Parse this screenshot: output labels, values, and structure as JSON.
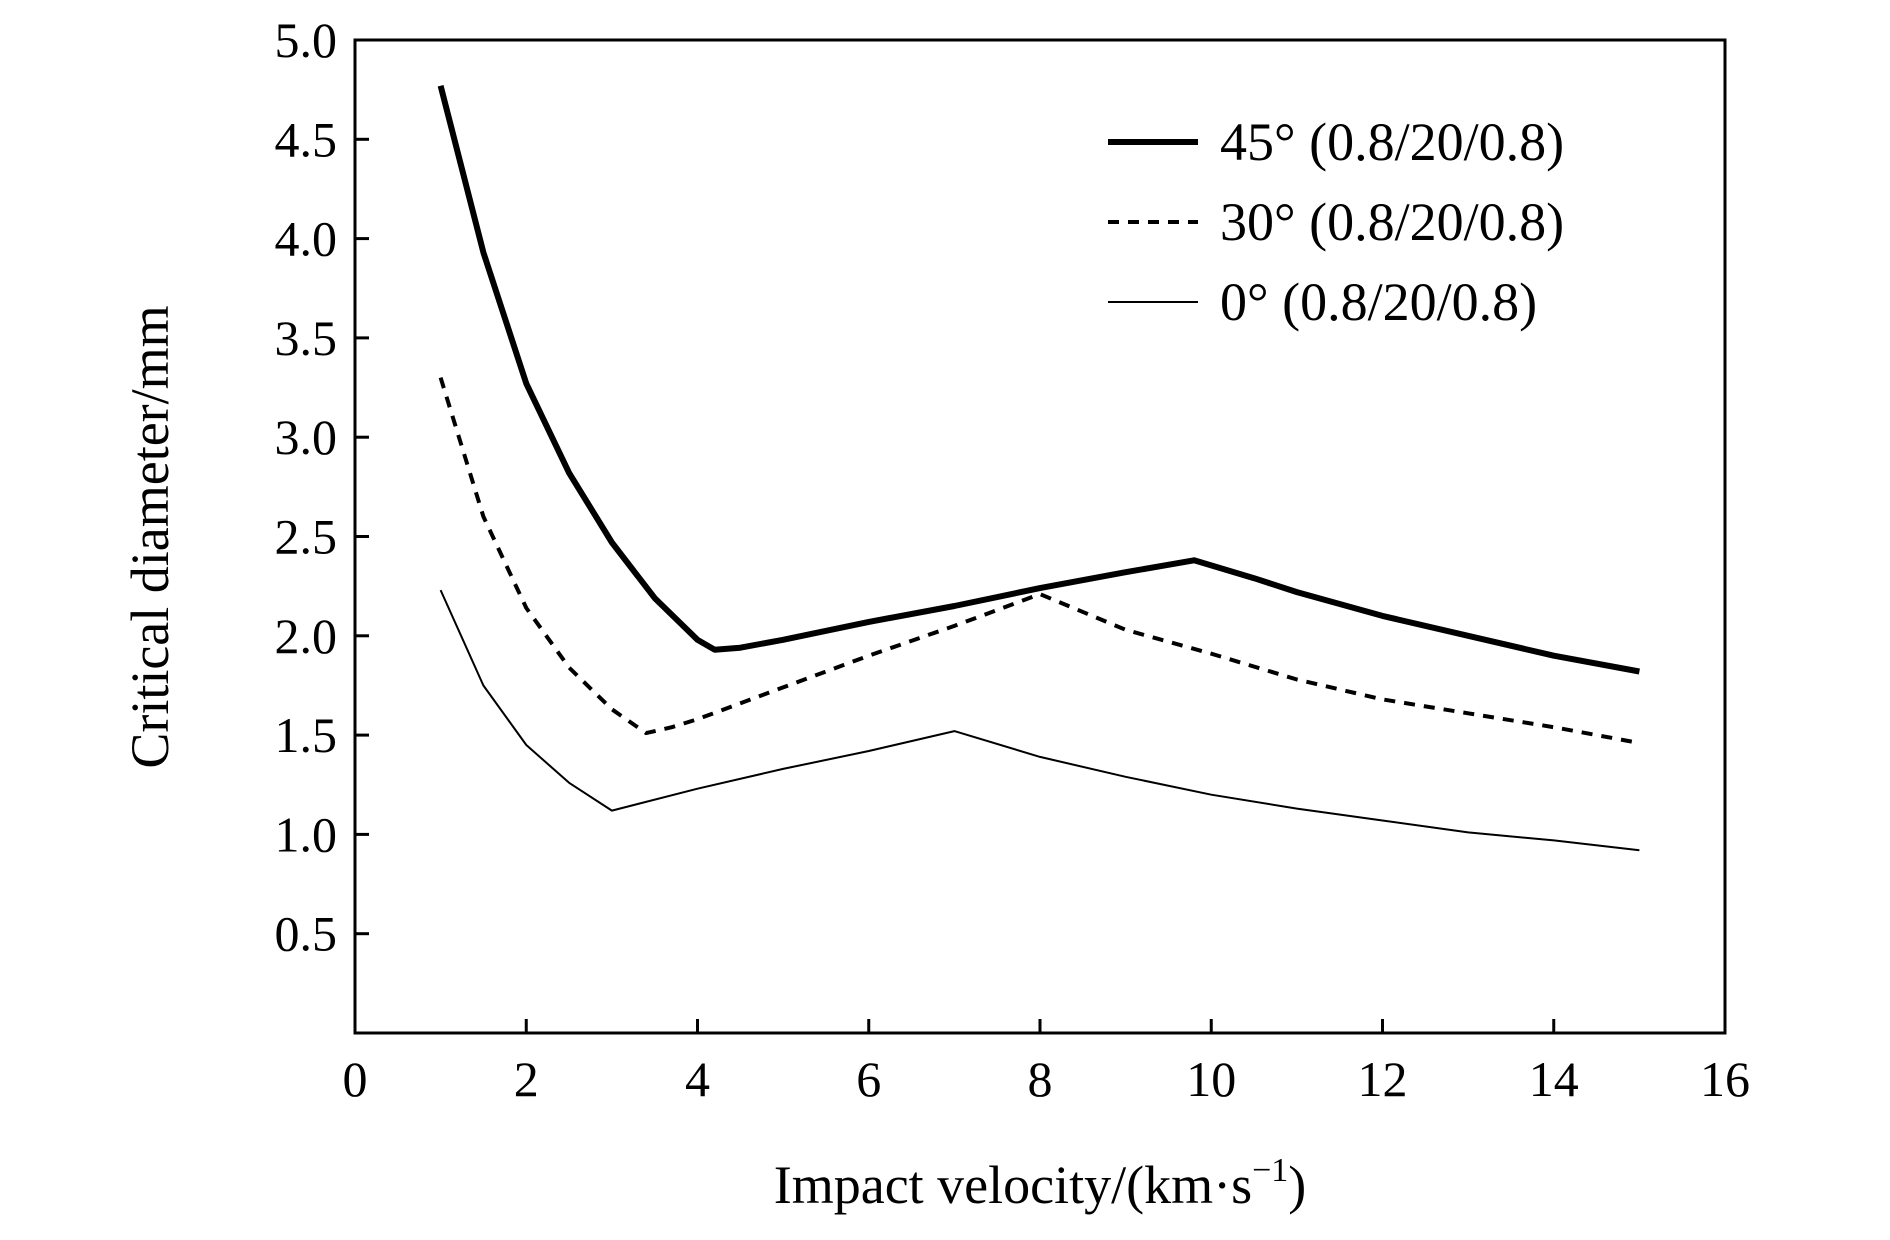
{
  "chart_data": {
    "type": "line",
    "title": "",
    "xlabel_main": "Impact velocity/(km·s",
    "xlabel_sup": "−1",
    "xlabel_close": ")",
    "ylabel": "Critical diameter/mm",
    "xlim": [
      0,
      16
    ],
    "ylim": [
      0,
      5.0
    ],
    "xticks": [
      "0",
      "2",
      "4",
      "6",
      "8",
      "10",
      "12",
      "14",
      "16"
    ],
    "yticks": [
      "0.5",
      "1.0",
      "1.5",
      "2.0",
      "2.5",
      "3.0",
      "3.5",
      "4.0",
      "4.5",
      "5.0"
    ],
    "grid": false,
    "legend_position": "top-right",
    "series": [
      {
        "name": "45° (0.8/20/0.8)",
        "style": "thick-solid",
        "x": [
          1.0,
          1.5,
          2.0,
          2.5,
          3.0,
          3.5,
          4.0,
          4.2,
          4.5,
          5.0,
          6.0,
          7.0,
          8.0,
          9.0,
          9.8,
          10.5,
          11.0,
          12.0,
          13.0,
          14.0,
          15.0
        ],
        "y": [
          4.77,
          3.93,
          3.27,
          2.82,
          2.47,
          2.19,
          1.98,
          1.93,
          1.94,
          1.98,
          2.07,
          2.15,
          2.24,
          2.32,
          2.38,
          2.29,
          2.22,
          2.1,
          2.0,
          1.9,
          1.82
        ]
      },
      {
        "name": "30° (0.8/20/0.8)",
        "style": "dashed",
        "x": [
          1.0,
          1.5,
          2.0,
          2.5,
          3.0,
          3.4,
          3.7,
          4.0,
          5.0,
          6.0,
          7.0,
          8.0,
          9.0,
          10.0,
          11.0,
          12.0,
          13.0,
          14.0,
          15.0
        ],
        "y": [
          3.3,
          2.6,
          2.14,
          1.84,
          1.63,
          1.51,
          1.54,
          1.58,
          1.74,
          1.9,
          2.05,
          2.21,
          2.03,
          1.91,
          1.78,
          1.68,
          1.61,
          1.54,
          1.46
        ]
      },
      {
        "name": "0° (0.8/20/0.8)",
        "style": "thin-solid",
        "x": [
          1.0,
          1.5,
          2.0,
          2.5,
          3.0,
          4.0,
          5.0,
          6.0,
          7.0,
          8.0,
          9.0,
          10.0,
          11.0,
          12.0,
          13.0,
          14.0,
          15.0
        ],
        "y": [
          2.23,
          1.75,
          1.45,
          1.26,
          1.12,
          1.23,
          1.33,
          1.42,
          1.52,
          1.39,
          1.29,
          1.2,
          1.13,
          1.07,
          1.01,
          0.97,
          0.92
        ]
      }
    ]
  }
}
